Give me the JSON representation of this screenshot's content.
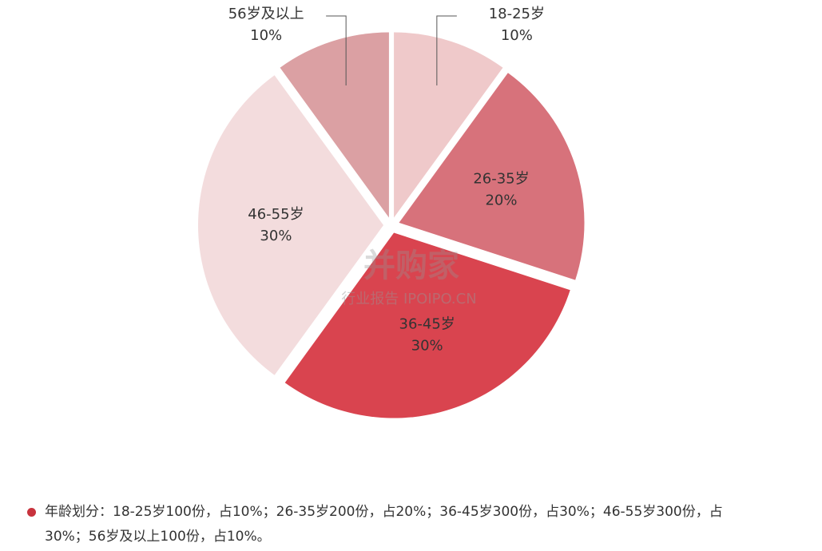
{
  "chart_data": {
    "type": "pie",
    "categories": [
      "18-25岁",
      "26-35岁",
      "36-45岁",
      "46-55岁",
      "56岁及以上"
    ],
    "values": [
      10,
      20,
      30,
      30,
      10
    ],
    "value_labels": [
      "10%",
      "20%",
      "30%",
      "30%",
      "10%"
    ],
    "colors": [
      "#efc9ca",
      "#d7727b",
      "#d9444f",
      "#f3dcdd",
      "#dba0a3"
    ],
    "watermark": {
      "title": "并购家",
      "subtitle": "行业报告 IPOIPO.CN"
    },
    "note": "年龄划分：18-25岁100份，占10%；26-35岁200份，占20%；36-45岁300份，占30%；46-55岁300份，占30%；56岁及以上100份，占10%。"
  }
}
